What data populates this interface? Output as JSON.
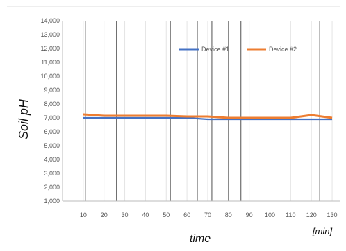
{
  "chart_data": {
    "type": "line",
    "title": "",
    "xlabel": "time",
    "x_unit_label": "[min]",
    "ylabel": "Soil pH",
    "x": [
      10,
      20,
      30,
      40,
      50,
      60,
      70,
      80,
      90,
      100,
      110,
      120,
      130
    ],
    "x_tick_labels": [
      "10",
      "20",
      "30",
      "40",
      "50",
      "60",
      "70",
      "80",
      "90",
      "100",
      "110",
      "120",
      "130"
    ],
    "xlim": [
      0,
      134
    ],
    "ylim": [
      1000,
      14000
    ],
    "y_tick_labels": [
      "1,000",
      "2,000",
      "3,000",
      "4,000",
      "5,000",
      "6,000",
      "7,000",
      "8,000",
      "9,000",
      "10,000",
      "11,000",
      "12,000",
      "13,000",
      "14,000"
    ],
    "vertical_grid_x": [
      11,
      26,
      52,
      65,
      72,
      80,
      86,
      124
    ],
    "grid": true,
    "legend_position": "top-right",
    "series": [
      {
        "name": "Device #1",
        "color": "#4472C4",
        "values": [
          7000,
          7000,
          7000,
          7000,
          7000,
          7000,
          6900,
          6900,
          6900,
          6900,
          6900,
          6900,
          6900
        ]
      },
      {
        "name": "Device #2",
        "color": "#ED7D31",
        "values": [
          7250,
          7150,
          7150,
          7150,
          7150,
          7100,
          7100,
          7000,
          7000,
          7000,
          7000,
          7200,
          7000
        ]
      }
    ]
  }
}
